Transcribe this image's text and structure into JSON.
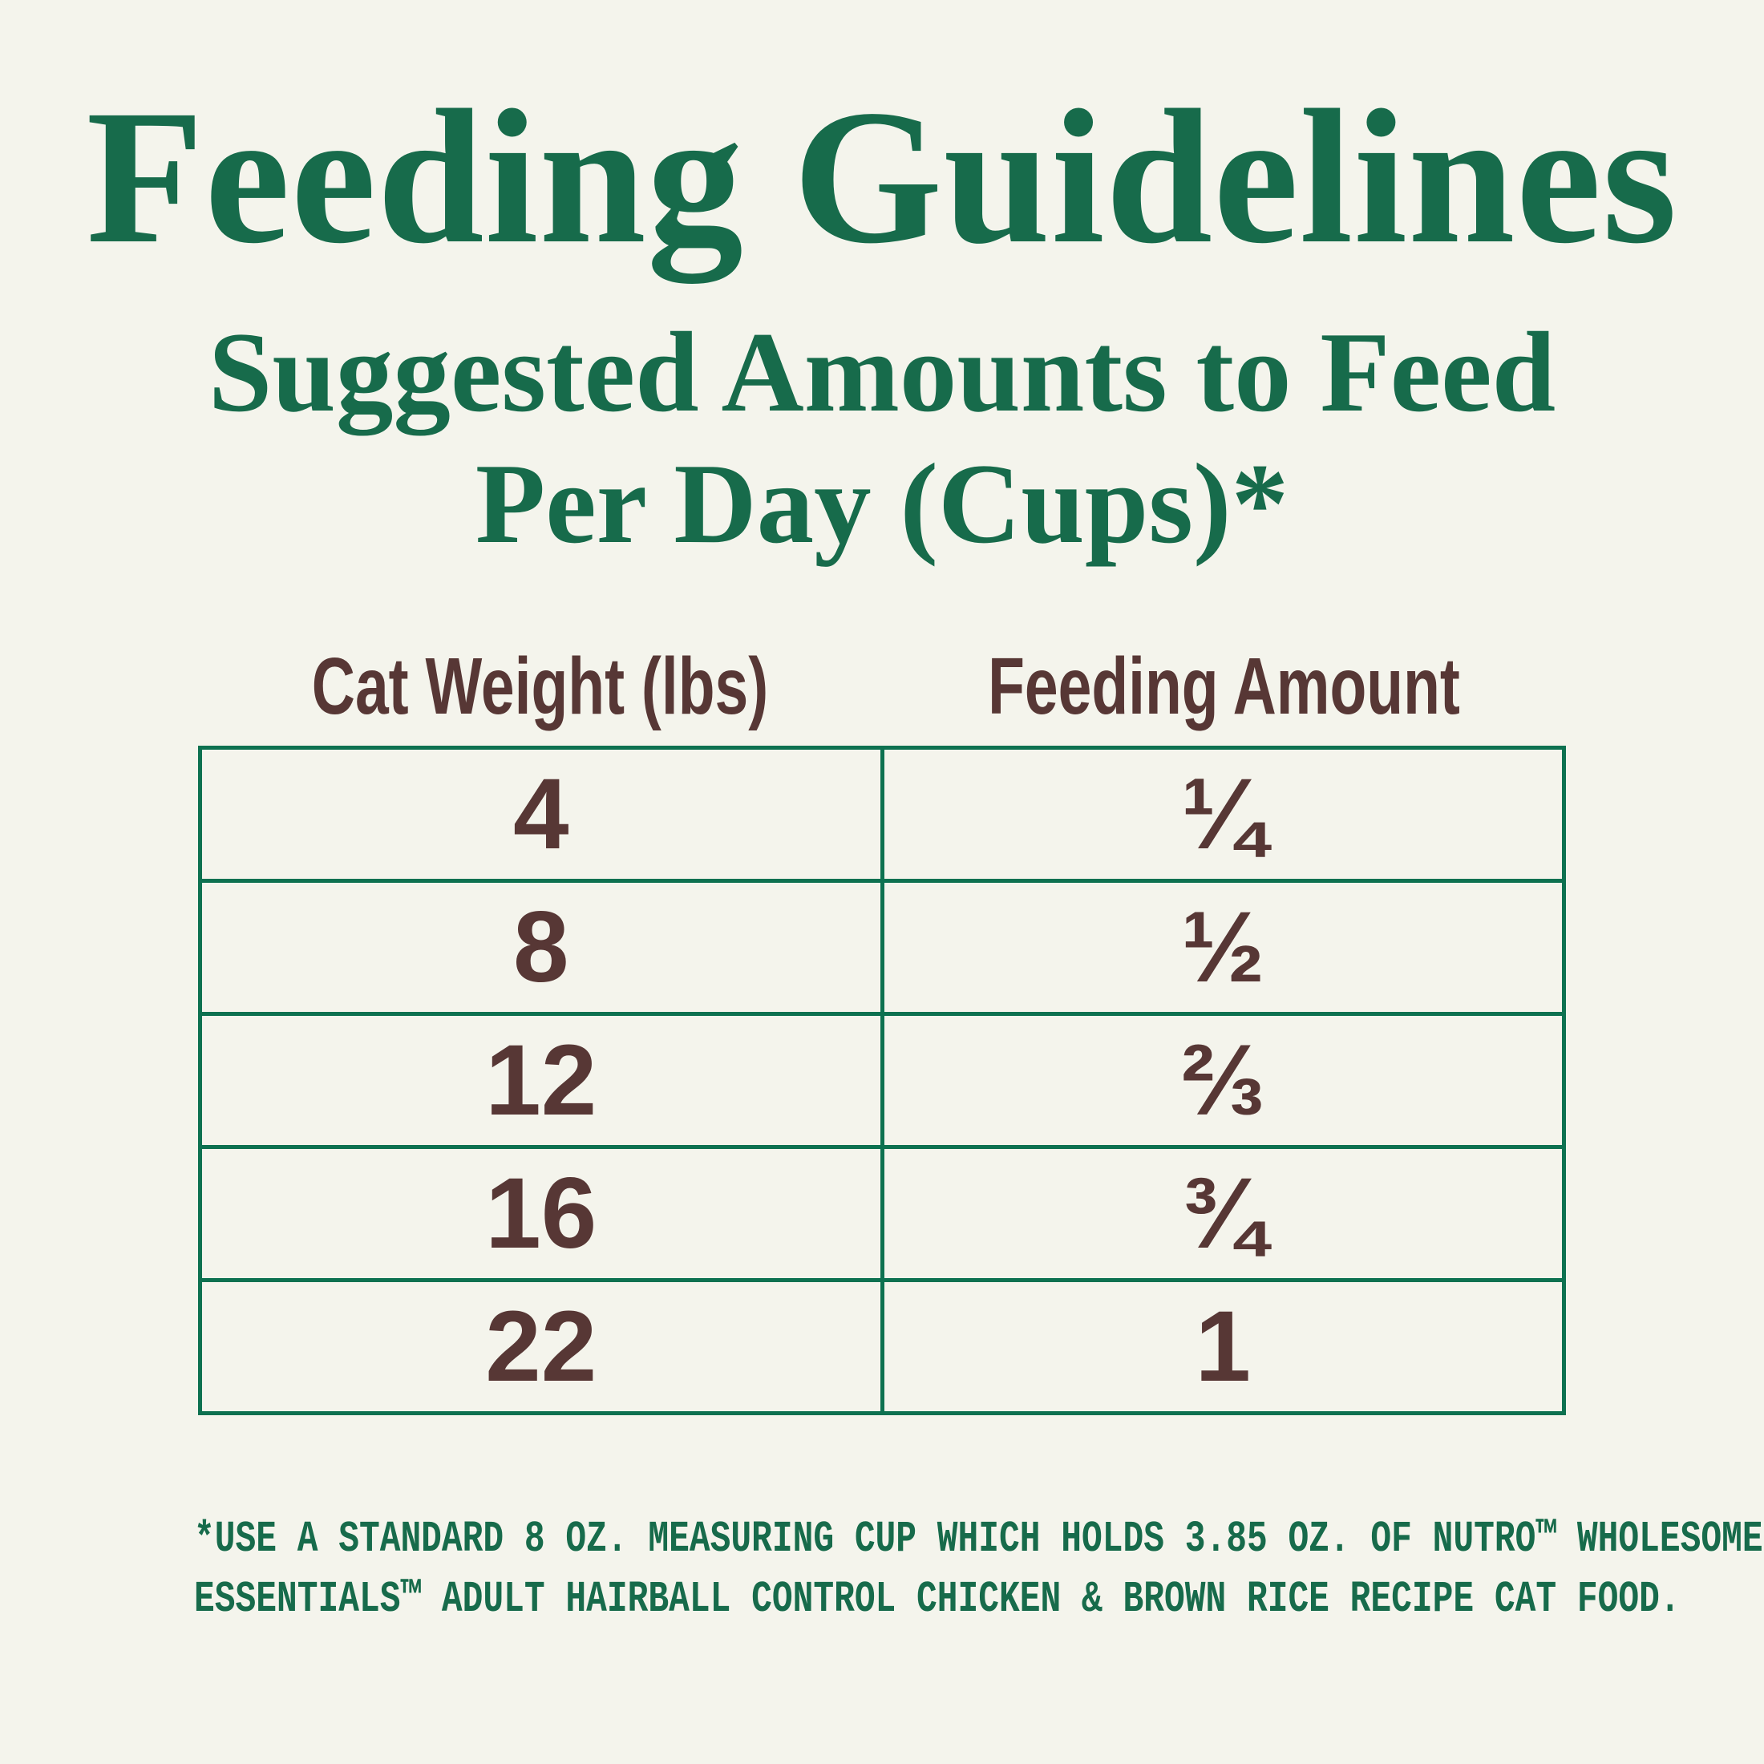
{
  "colors": {
    "green": "#176B4B",
    "border-green": "#0D7150",
    "brown": "#573735",
    "bg": "#F4F4EC"
  },
  "title": "Feeding Guidelines",
  "subtitle": {
    "line1": "Suggested Amounts to Feed",
    "line2": "Per Day (Cups)*"
  },
  "table": {
    "columns": [
      "Cat Weight (lbs)",
      "Feeding Amount"
    ],
    "rows": [
      {
        "weight": "4",
        "amount": "¼"
      },
      {
        "weight": "8",
        "amount": "½"
      },
      {
        "weight": "12",
        "amount": "⅔"
      },
      {
        "weight": "16",
        "amount": "¾"
      },
      {
        "weight": "22",
        "amount": "1"
      }
    ]
  },
  "footnote": {
    "line1": "*USE A STANDARD 8 OZ. MEASURING CUP WHICH HOLDS 3.85 OZ. OF NUTRO™ WHOLESOME",
    "line2": "ESSENTIALS™ ADULT HAIRBALL CONTROL CHICKEN & BROWN RICE RECIPE CAT FOOD."
  }
}
